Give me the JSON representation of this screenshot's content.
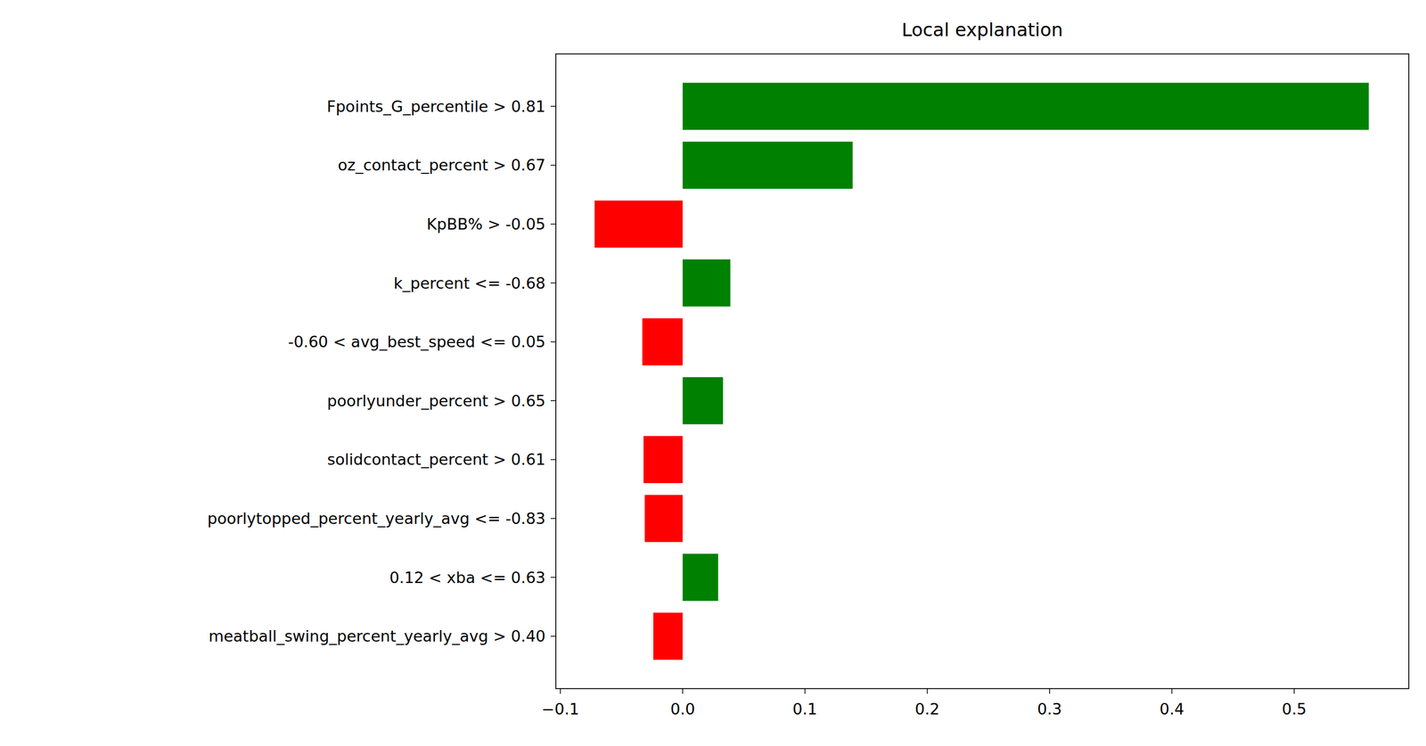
{
  "chart_data": {
    "type": "bar",
    "orientation": "horizontal",
    "title": "Local explanation",
    "categories": [
      "Fpoints_G_percentile > 0.81",
      "oz_contact_percent > 0.67",
      "KpBB% > -0.05",
      "k_percent <= -0.68",
      "-0.60 < avg_best_speed <= 0.05",
      "poorlyunder_percent > 0.65",
      "solidcontact_percent > 0.61",
      "poorlytopped_percent_yearly_avg <= -0.83",
      "0.12 < xba <= 0.63",
      "meatball_swing_percent_yearly_avg > 0.40"
    ],
    "values": [
      0.561,
      0.139,
      -0.072,
      0.039,
      -0.033,
      0.033,
      -0.032,
      -0.031,
      0.029,
      -0.024
    ],
    "colors": [
      "green",
      "green",
      "red",
      "green",
      "red",
      "green",
      "red",
      "red",
      "green",
      "red"
    ],
    "xlim": [
      -0.1037,
      0.5937
    ],
    "xticks": [
      {
        "value": -0.1,
        "label": "−0.1"
      },
      {
        "value": 0,
        "label": "0.0"
      },
      0.1,
      0.2,
      0.3,
      0.4,
      0.5
    ],
    "grid": false
  }
}
